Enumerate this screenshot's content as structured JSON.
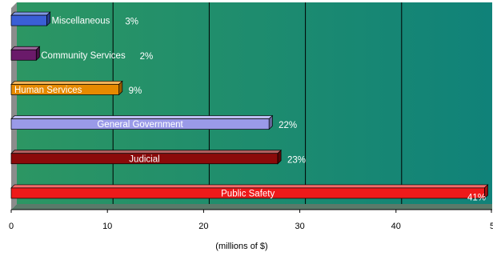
{
  "chart_data": {
    "type": "bar",
    "orientation": "horizontal",
    "xlabel": "(millions of $)",
    "xlim": [
      0,
      50
    ],
    "xticks": [
      "0",
      "10",
      "20",
      "30",
      "40",
      "5"
    ],
    "grid": true,
    "background_color": "#1e8c6e",
    "categories": [
      "Miscellaneous",
      "Community Services",
      "Human Services",
      "General Government",
      "Judicial",
      "Public Safety"
    ],
    "values": [
      3.7,
      2.6,
      11.2,
      26.8,
      27.7,
      49.2
    ],
    "percent_labels": [
      "3%",
      "2%",
      "9%",
      "22%",
      "23%",
      "41%"
    ],
    "colors": [
      "#3a5fd6",
      "#6a1a6a",
      "#e68a00",
      "#9a9ae8",
      "#8b0a0a",
      "#ee1a1a"
    ]
  }
}
